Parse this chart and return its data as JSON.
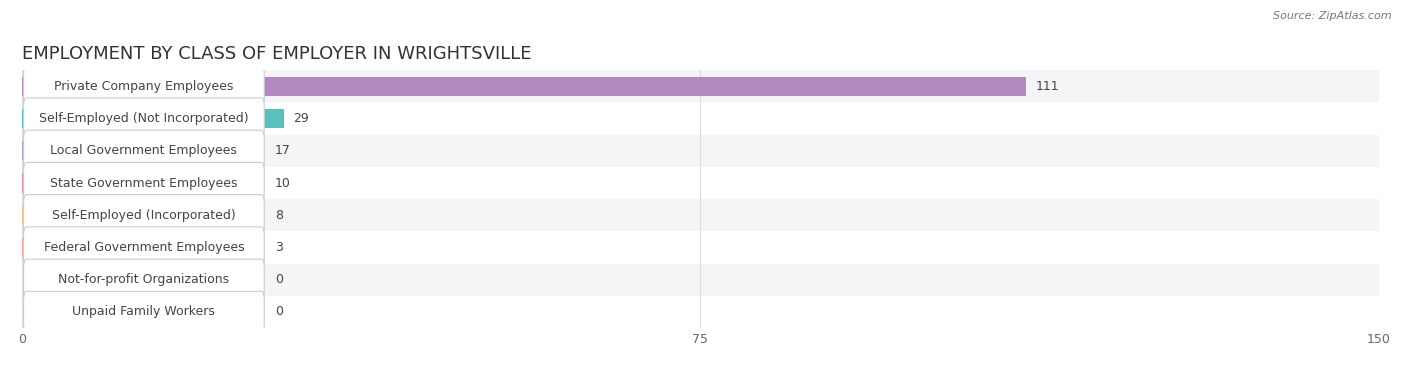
{
  "title": "EMPLOYMENT BY CLASS OF EMPLOYER IN WRIGHTSVILLE",
  "source": "Source: ZipAtlas.com",
  "categories": [
    "Private Company Employees",
    "Self-Employed (Not Incorporated)",
    "Local Government Employees",
    "State Government Employees",
    "Self-Employed (Incorporated)",
    "Federal Government Employees",
    "Not-for-profit Organizations",
    "Unpaid Family Workers"
  ],
  "values": [
    111,
    29,
    17,
    10,
    8,
    3,
    0,
    0
  ],
  "bar_colors": [
    "#b08ac0",
    "#5bbfbc",
    "#a0a8d8",
    "#f089aa",
    "#f5c08a",
    "#f4a898",
    "#96b8e4",
    "#c0a8d8"
  ],
  "xlim": [
    0,
    150
  ],
  "xticks": [
    0,
    75,
    150
  ],
  "fig_bg": "#ffffff",
  "row_bg_even": "#f5f5f8",
  "row_bg_odd": "#ffffff",
  "grid_color": "#dddddd",
  "title_fontsize": 13,
  "label_fontsize": 9,
  "value_fontsize": 9,
  "source_fontsize": 8
}
